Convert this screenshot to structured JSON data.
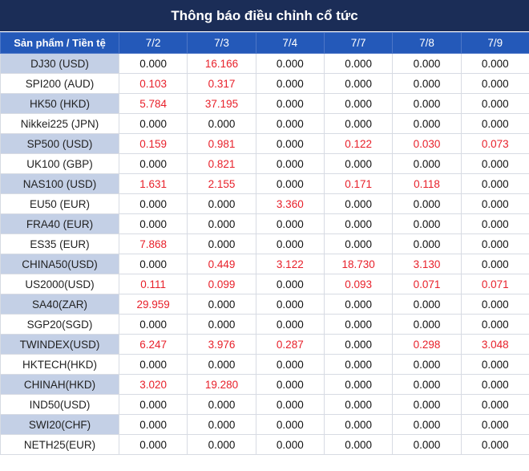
{
  "title": "Thông báo điều chỉnh cổ tức",
  "header_label": "Sản phẩm / Tiền tệ",
  "dates": [
    "7/2",
    "7/3",
    "7/4",
    "7/7",
    "7/8",
    "7/9"
  ],
  "rows": [
    {
      "product": "DJ30 (USD)",
      "values": [
        "0.000",
        "16.166",
        "0.000",
        "0.000",
        "0.000",
        "0.000"
      ]
    },
    {
      "product": "SPI200 (AUD)",
      "values": [
        "0.103",
        "0.317",
        "0.000",
        "0.000",
        "0.000",
        "0.000"
      ]
    },
    {
      "product": "HK50 (HKD)",
      "values": [
        "5.784",
        "37.195",
        "0.000",
        "0.000",
        "0.000",
        "0.000"
      ]
    },
    {
      "product": "Nikkei225 (JPN)",
      "values": [
        "0.000",
        "0.000",
        "0.000",
        "0.000",
        "0.000",
        "0.000"
      ]
    },
    {
      "product": "SP500 (USD)",
      "values": [
        "0.159",
        "0.981",
        "0.000",
        "0.122",
        "0.030",
        "0.073"
      ]
    },
    {
      "product": "UK100 (GBP)",
      "values": [
        "0.000",
        "0.821",
        "0.000",
        "0.000",
        "0.000",
        "0.000"
      ]
    },
    {
      "product": "NAS100 (USD)",
      "values": [
        "1.631",
        "2.155",
        "0.000",
        "0.171",
        "0.118",
        "0.000"
      ]
    },
    {
      "product": "EU50 (EUR)",
      "values": [
        "0.000",
        "0.000",
        "3.360",
        "0.000",
        "0.000",
        "0.000"
      ]
    },
    {
      "product": "FRA40 (EUR)",
      "values": [
        "0.000",
        "0.000",
        "0.000",
        "0.000",
        "0.000",
        "0.000"
      ]
    },
    {
      "product": "ES35 (EUR)",
      "values": [
        "7.868",
        "0.000",
        "0.000",
        "0.000",
        "0.000",
        "0.000"
      ]
    },
    {
      "product": "CHINA50(USD)",
      "values": [
        "0.000",
        "0.449",
        "3.122",
        "18.730",
        "3.130",
        "0.000"
      ]
    },
    {
      "product": "US2000(USD)",
      "values": [
        "0.111",
        "0.099",
        "0.000",
        "0.093",
        "0.071",
        "0.071"
      ]
    },
    {
      "product": "SA40(ZAR)",
      "values": [
        "29.959",
        "0.000",
        "0.000",
        "0.000",
        "0.000",
        "0.000"
      ]
    },
    {
      "product": "SGP20(SGD)",
      "values": [
        "0.000",
        "0.000",
        "0.000",
        "0.000",
        "0.000",
        "0.000"
      ]
    },
    {
      "product": "TWINDEX(USD)",
      "values": [
        "6.247",
        "3.976",
        "0.287",
        "0.000",
        "0.298",
        "3.048"
      ]
    },
    {
      "product": "HKTECH(HKD)",
      "values": [
        "0.000",
        "0.000",
        "0.000",
        "0.000",
        "0.000",
        "0.000"
      ]
    },
    {
      "product": "CHINAH(HKD)",
      "values": [
        "3.020",
        "19.280",
        "0.000",
        "0.000",
        "0.000",
        "0.000"
      ]
    },
    {
      "product": "IND50(USD)",
      "values": [
        "0.000",
        "0.000",
        "0.000",
        "0.000",
        "0.000",
        "0.000"
      ]
    },
    {
      "product": "SWI20(CHF)",
      "values": [
        "0.000",
        "0.000",
        "0.000",
        "0.000",
        "0.000",
        "0.000"
      ]
    },
    {
      "product": "NETH25(EUR)",
      "values": [
        "0.000",
        "0.000",
        "0.000",
        "0.000",
        "0.000",
        "0.000"
      ]
    }
  ],
  "colors": {
    "title_bg": "#1b2d57",
    "header_bg": "#2459b9",
    "shaded_row": "#c4d0e6",
    "positive_value": "#e8202a"
  }
}
